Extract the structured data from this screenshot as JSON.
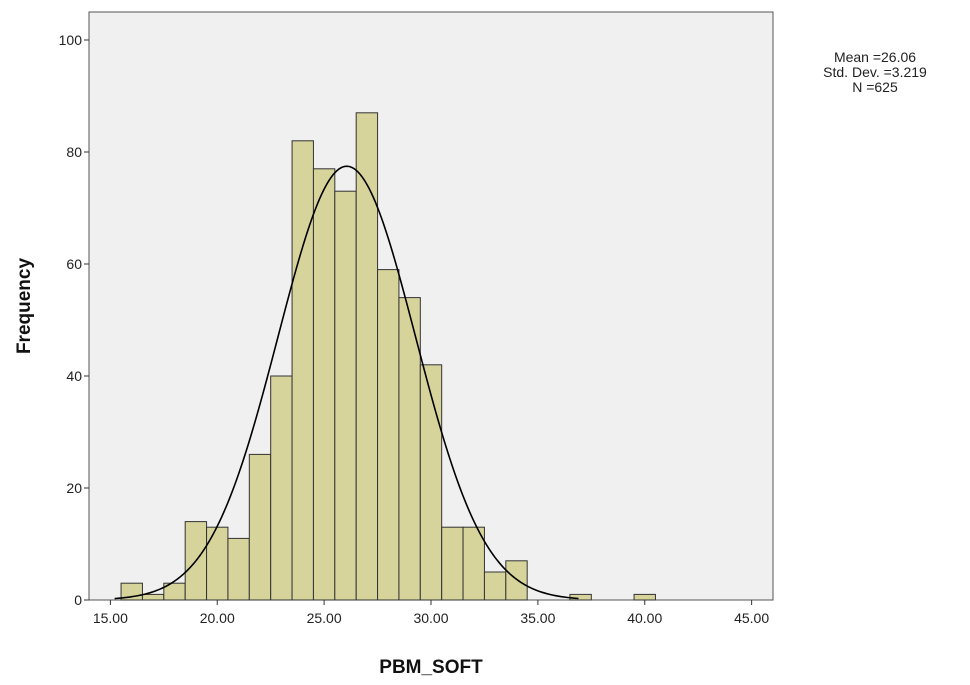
{
  "chart_data": {
    "type": "bar",
    "subtype": "histogram",
    "xlabel": "PBM_SOFT",
    "ylabel": "Frequency",
    "xlim": [
      14,
      46
    ],
    "ylim": [
      0,
      105
    ],
    "x_ticks": [
      "15.00",
      "20.00",
      "25.00",
      "30.00",
      "35.00",
      "40.00",
      "45.00"
    ],
    "x_tick_values": [
      15,
      20,
      25,
      30,
      35,
      40,
      45
    ],
    "y_ticks": [
      "0",
      "20",
      "40",
      "60",
      "80",
      "100"
    ],
    "y_tick_values": [
      0,
      20,
      40,
      60,
      80,
      100
    ],
    "bin_width": 1,
    "bins": [
      {
        "start": 15.5,
        "count": 3
      },
      {
        "start": 16.5,
        "count": 1
      },
      {
        "start": 17.5,
        "count": 3
      },
      {
        "start": 18.5,
        "count": 14
      },
      {
        "start": 19.5,
        "count": 13
      },
      {
        "start": 20.5,
        "count": 11
      },
      {
        "start": 21.5,
        "count": 26
      },
      {
        "start": 22.5,
        "count": 40
      },
      {
        "start": 23.5,
        "count": 82
      },
      {
        "start": 24.5,
        "count": 77
      },
      {
        "start": 25.5,
        "count": 73
      },
      {
        "start": 26.5,
        "count": 87
      },
      {
        "start": 27.5,
        "count": 59
      },
      {
        "start": 28.5,
        "count": 54
      },
      {
        "start": 29.5,
        "count": 42
      },
      {
        "start": 30.5,
        "count": 13
      },
      {
        "start": 31.5,
        "count": 13
      },
      {
        "start": 32.5,
        "count": 5
      },
      {
        "start": 33.5,
        "count": 7
      },
      {
        "start": 36.5,
        "count": 1
      },
      {
        "start": 39.5,
        "count": 1
      }
    ],
    "normal_curve": {
      "mean": 26.06,
      "std_dev": 3.219,
      "n": 625
    },
    "grid": false,
    "colors": {
      "bar_fill": "#d6d39b",
      "bar_stroke": "#333333",
      "plot_bg": "#f0f0f0",
      "curve": "#000000"
    }
  },
  "stats": {
    "mean": "Mean =26.06",
    "std_dev": "Std. Dev. =3.219",
    "n": "N =625"
  }
}
